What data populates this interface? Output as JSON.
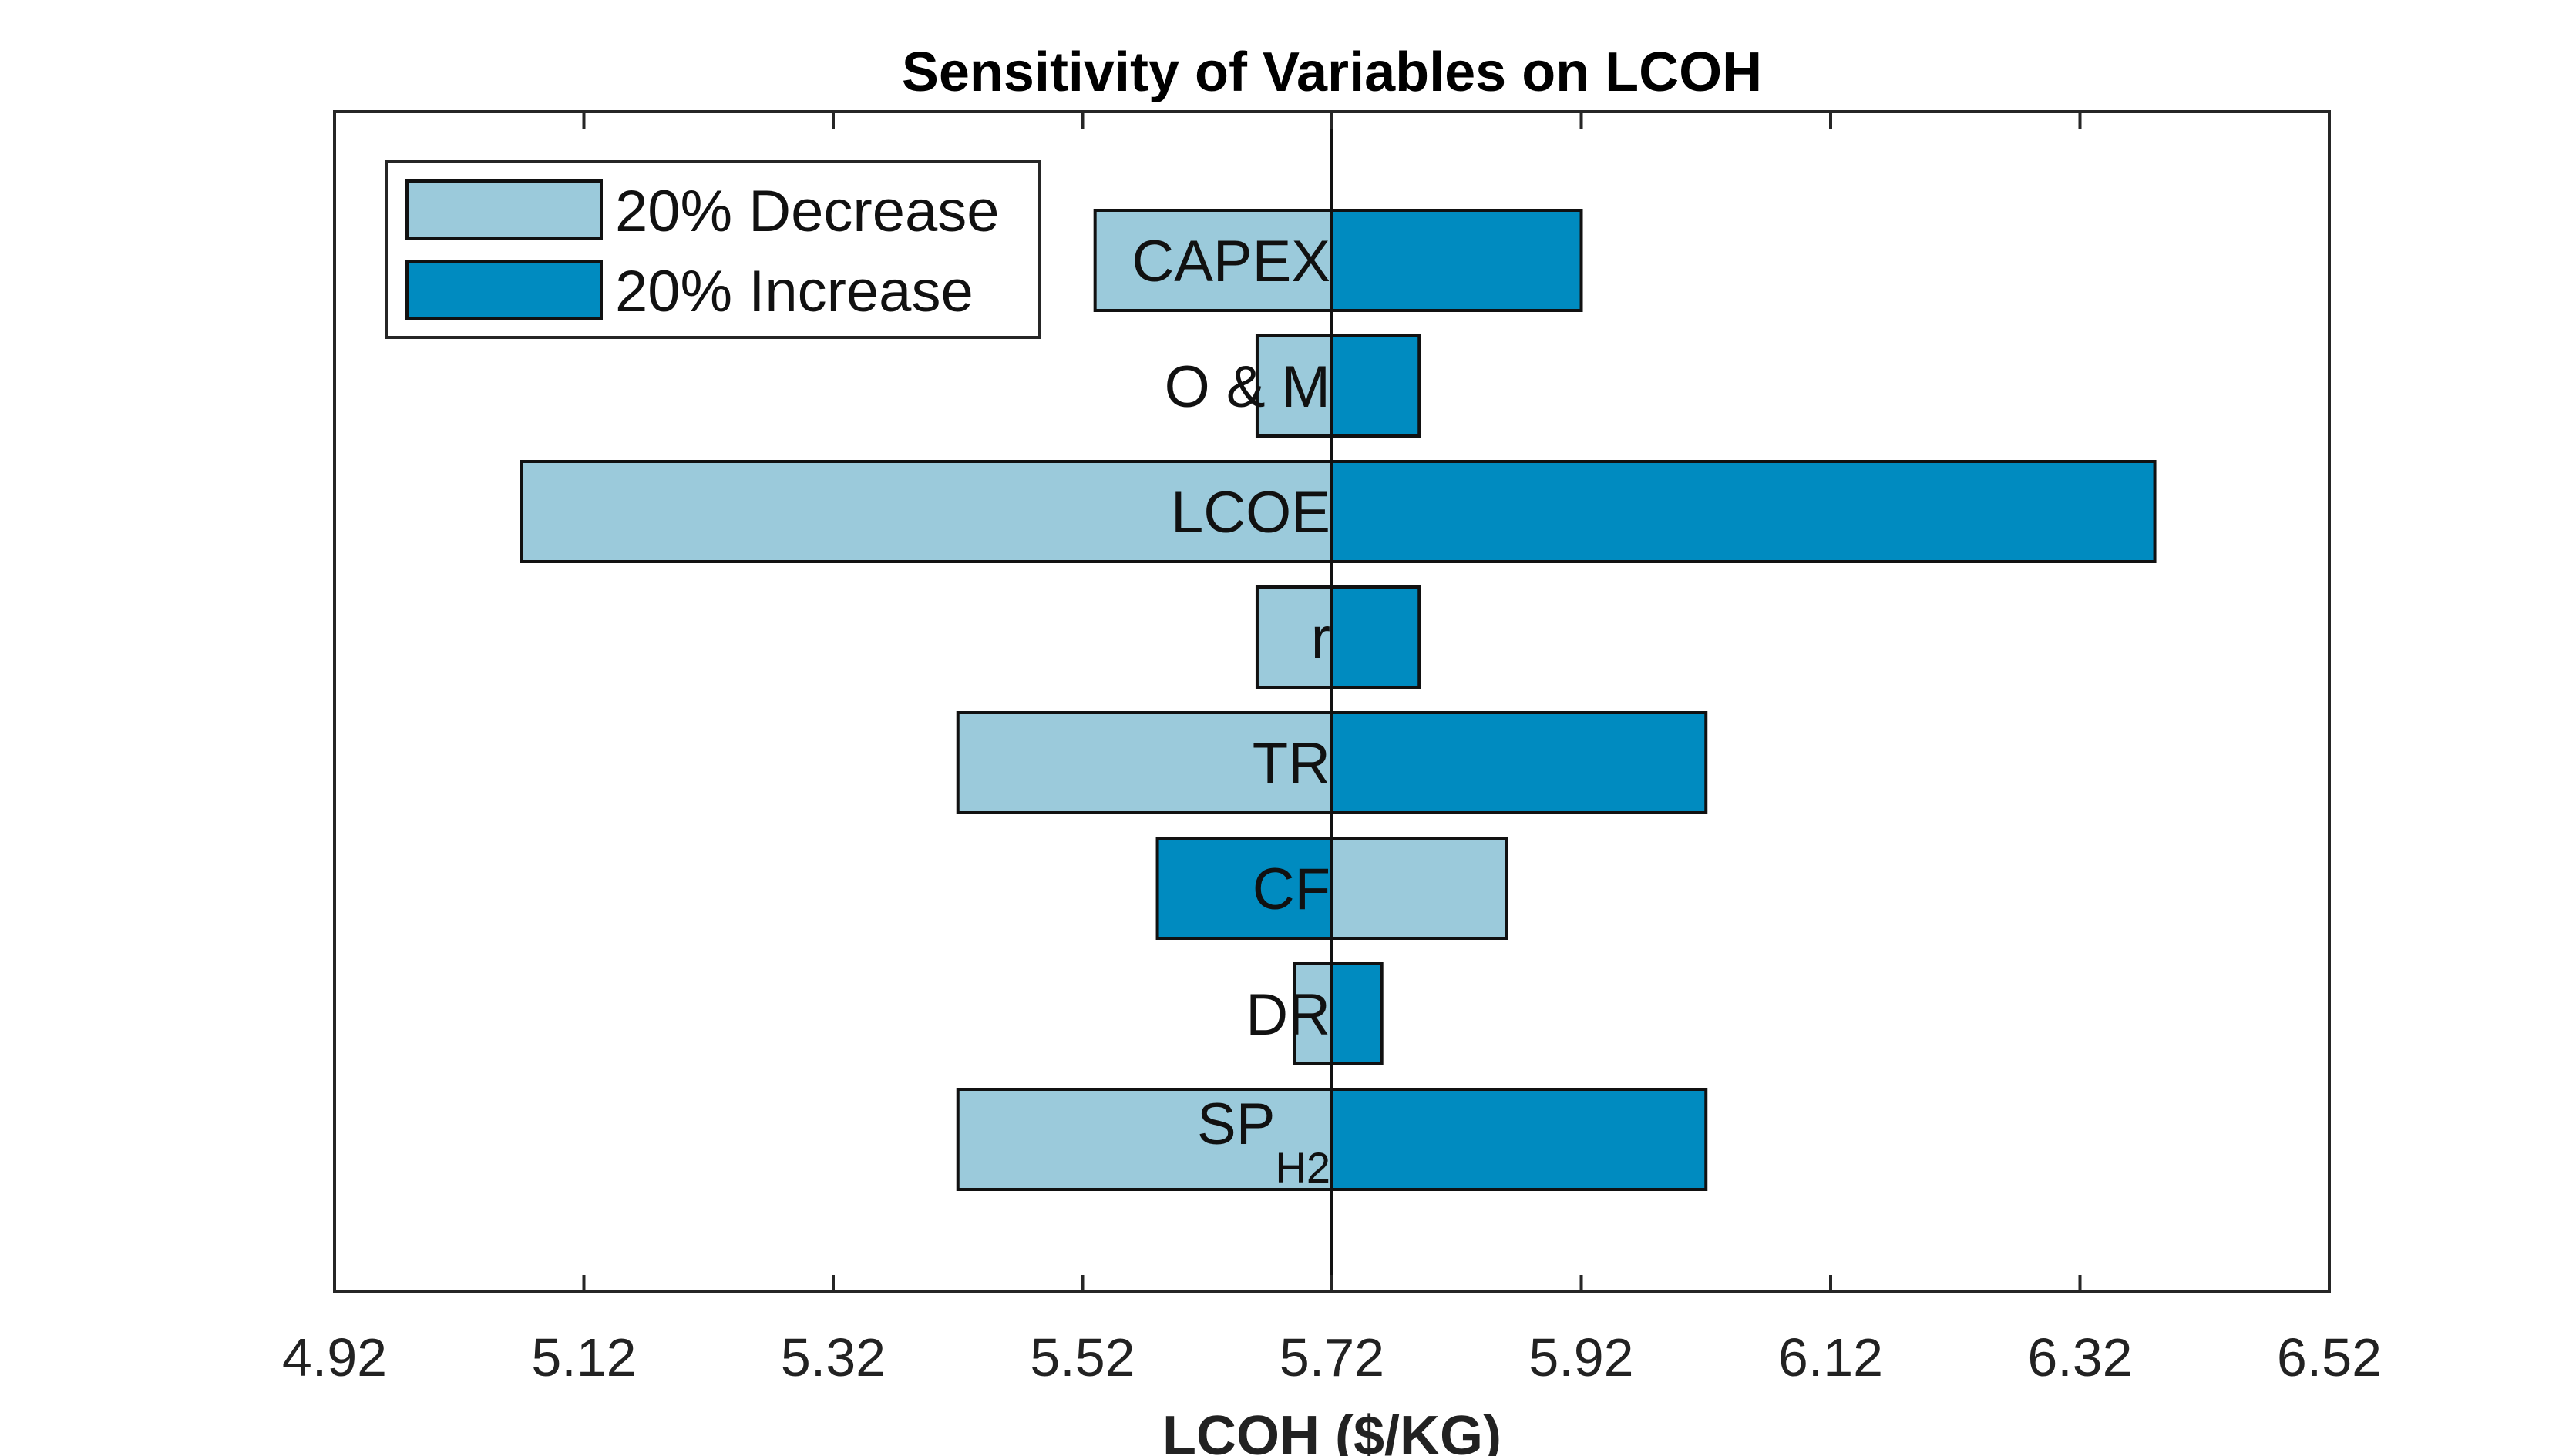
{
  "chart_data": {
    "type": "bar",
    "orientation": "horizontal",
    "title": "Sensitivity of Variables on LCOH",
    "xlabel": "LCOH ($/KG)",
    "ylabel": "",
    "xlim": [
      4.92,
      6.52
    ],
    "xticks": [
      "4.92",
      "5.12",
      "5.32",
      "5.52",
      "5.72",
      "5.92",
      "6.12",
      "6.32",
      "6.52"
    ],
    "baseline": 5.72,
    "grid": false,
    "legend_position": "top-left",
    "legend": [
      {
        "label": "20% Decrease",
        "color": "#9bcadb"
      },
      {
        "label": "20% Increase",
        "color": "#008bc0"
      }
    ],
    "colors": {
      "decrease": "#9bcadb",
      "increase": "#008bc0"
    },
    "categories": [
      {
        "label": "CAPEX",
        "sub": ""
      },
      {
        "label": "O & M",
        "sub": ""
      },
      {
        "label": "LCOE",
        "sub": ""
      },
      {
        "label": "r",
        "sub": ""
      },
      {
        "label": "TR",
        "sub": ""
      },
      {
        "label": "CF",
        "sub": ""
      },
      {
        "label": "DR",
        "sub": ""
      },
      {
        "label": "SP",
        "sub": "H2"
      }
    ],
    "series": [
      {
        "name": "20% Decrease",
        "values": [
          5.53,
          5.66,
          5.07,
          5.66,
          5.42,
          5.86,
          5.69,
          5.42
        ]
      },
      {
        "name": "20% Increase",
        "values": [
          5.92,
          5.79,
          6.38,
          5.79,
          6.02,
          5.58,
          5.76,
          6.02
        ]
      }
    ]
  }
}
